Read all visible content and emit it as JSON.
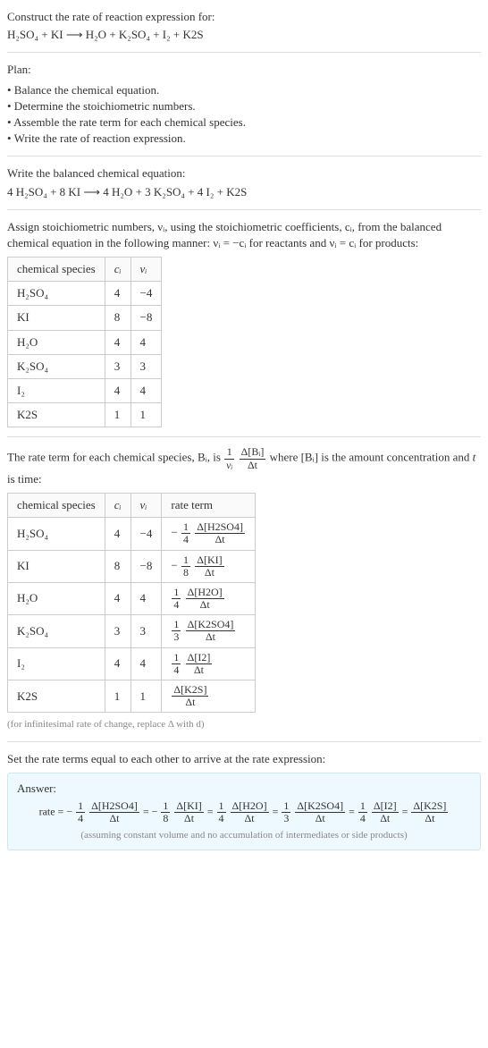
{
  "intro": {
    "title": "Construct the rate of reaction expression for:",
    "equation": "H₂SO₄ + KI ⟶ H₂O + K₂SO₄ + I₂ + K2S"
  },
  "plan": {
    "title": "Plan:",
    "items": [
      "• Balance the chemical equation.",
      "• Determine the stoichiometric numbers.",
      "• Assemble the rate term for each chemical species.",
      "• Write the rate of reaction expression."
    ]
  },
  "balanced": {
    "title": "Write the balanced chemical equation:",
    "equation": "4 H₂SO₄ + 8 KI ⟶ 4 H₂O + 3 K₂SO₄ + 4 I₂ + K2S"
  },
  "assign_para": "Assign stoichiometric numbers, νᵢ, using the stoichiometric coefficients, cᵢ, from the balanced chemical equation in the following manner: νᵢ = −cᵢ for reactants and νᵢ = cᵢ for products:",
  "table1": {
    "headers": [
      "chemical species",
      "cᵢ",
      "νᵢ"
    ],
    "rows": [
      [
        "H₂SO₄",
        "4",
        "−4"
      ],
      [
        "KI",
        "8",
        "−8"
      ],
      [
        "H₂O",
        "4",
        "4"
      ],
      [
        "K₂SO₄",
        "3",
        "3"
      ],
      [
        "I₂",
        "4",
        "4"
      ],
      [
        "K2S",
        "1",
        "1"
      ]
    ]
  },
  "rate_para_a": "The rate term for each chemical species, Bᵢ, is ",
  "rate_para_b": " where [Bᵢ] is the amount concentration and ",
  "rate_para_b_t": "t",
  "rate_para_c": " is time:",
  "rate_frac": {
    "outer_num": "1",
    "outer_den": "νᵢ",
    "num": "Δ[Bᵢ]",
    "den": "Δt"
  },
  "table2": {
    "headers": [
      "chemical species",
      "cᵢ",
      "νᵢ",
      "rate term"
    ],
    "rows": [
      {
        "species": "H₂SO₄",
        "c": "4",
        "v": "−4",
        "sign": "−",
        "coef_num": "1",
        "coef_den": "4",
        "num": "Δ[H2SO4]",
        "den": "Δt"
      },
      {
        "species": "KI",
        "c": "8",
        "v": "−8",
        "sign": "−",
        "coef_num": "1",
        "coef_den": "8",
        "num": "Δ[KI]",
        "den": "Δt"
      },
      {
        "species": "H₂O",
        "c": "4",
        "v": "4",
        "sign": "",
        "coef_num": "1",
        "coef_den": "4",
        "num": "Δ[H2O]",
        "den": "Δt"
      },
      {
        "species": "K₂SO₄",
        "c": "3",
        "v": "3",
        "sign": "",
        "coef_num": "1",
        "coef_den": "3",
        "num": "Δ[K2SO4]",
        "den": "Δt"
      },
      {
        "species": "I₂",
        "c": "4",
        "v": "4",
        "sign": "",
        "coef_num": "1",
        "coef_den": "4",
        "num": "Δ[I2]",
        "den": "Δt"
      },
      {
        "species": "K2S",
        "c": "1",
        "v": "1",
        "sign": "",
        "coef_num": "",
        "coef_den": "",
        "num": "Δ[K2S]",
        "den": "Δt"
      }
    ],
    "caption": "(for infinitesimal rate of change, replace Δ with d)"
  },
  "set_equal": "Set the rate terms equal to each other to arrive at the rate expression:",
  "answer": {
    "label": "Answer:",
    "prefix": "rate = ",
    "terms": [
      {
        "sign": "−",
        "coef_num": "1",
        "coef_den": "4",
        "num": "Δ[H2SO4]",
        "den": "Δt"
      },
      {
        "sign": "−",
        "coef_num": "1",
        "coef_den": "8",
        "num": "Δ[KI]",
        "den": "Δt"
      },
      {
        "sign": "",
        "coef_num": "1",
        "coef_den": "4",
        "num": "Δ[H2O]",
        "den": "Δt"
      },
      {
        "sign": "",
        "coef_num": "1",
        "coef_den": "3",
        "num": "Δ[K2SO4]",
        "den": "Δt"
      },
      {
        "sign": "",
        "coef_num": "1",
        "coef_den": "4",
        "num": "Δ[I2]",
        "den": "Δt"
      },
      {
        "sign": "",
        "coef_num": "",
        "coef_den": "",
        "num": "Δ[K2S]",
        "den": "Δt"
      }
    ],
    "note": "(assuming constant volume and no accumulation of intermediates or side products)"
  }
}
